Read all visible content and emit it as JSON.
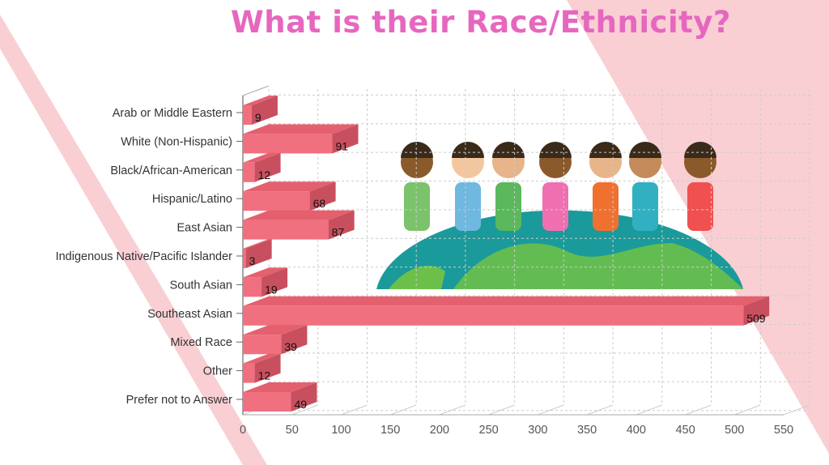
{
  "colors": {
    "title": "#e667bf",
    "bar_front": "#f07080",
    "bar_top": "#e4606f",
    "bar_side": "#c8505e",
    "bg_pink": "#f9cfd4"
  },
  "chart_data": {
    "type": "bar",
    "orientation": "horizontal",
    "title": "What is their Race/Ethnicity?",
    "categories": [
      "Arab or Middle Eastern",
      "White (Non-Hispanic)",
      "Black/African-American",
      "Hispanic/Latino",
      "East Asian",
      "Indigenous Native/Pacific Islander",
      "South Asian",
      "Southeast Asian",
      "Mixed Race",
      "Other",
      "Prefer not to Answer"
    ],
    "values": [
      9,
      91,
      12,
      68,
      87,
      3,
      19,
      509,
      39,
      12,
      49
    ],
    "xlabel": "",
    "ylabel": "",
    "xlim": [
      0,
      550
    ],
    "xticks": [
      "0",
      "50",
      "100",
      "150",
      "200",
      "250",
      "300",
      "350",
      "400",
      "450",
      "500",
      "550"
    ],
    "grid": true,
    "legend": "none"
  }
}
